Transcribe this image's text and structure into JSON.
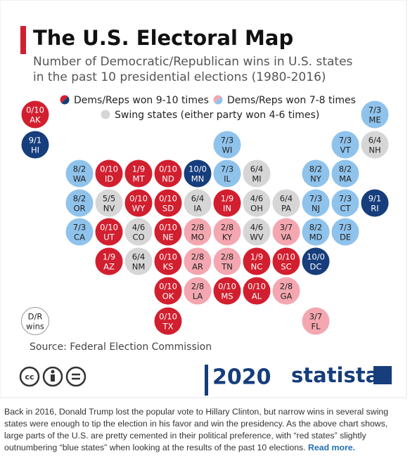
{
  "header": {
    "title": "The U.S. Electoral Map",
    "subtitle": [
      "Number of Democratic/Republican wins in U.S. states",
      "in the past 10 presidential elections (1980-2016)"
    ]
  },
  "legend": [
    {
      "label": "Dems/Reps won 9-10 times",
      "colors": [
        "#d21f2f",
        "#163d7c"
      ]
    },
    {
      "label": "Dems/Reps won 7-8 times",
      "colors": [
        "#f4a7b0",
        "#8fc3ec"
      ]
    },
    {
      "label": "Swing states (either party won 4-6 times)",
      "colors": [
        "#d6d6d6"
      ]
    }
  ],
  "tiles": [
    {
      "score": "0/10",
      "state": "AK",
      "color": "#d21f2f"
    },
    {
      "score": "7/3",
      "state": "ME",
      "color": "#8fc3ec"
    },
    {
      "score": "9/1",
      "state": "HI",
      "color": "#163d7c"
    },
    {
      "score": "7/3",
      "state": "WI",
      "color": "#8fc3ec"
    },
    {
      "score": "7/3",
      "state": "VT",
      "color": "#8fc3ec"
    },
    {
      "score": "6/4",
      "state": "NH",
      "color": "#d6d6d6"
    },
    {
      "score": "8/2",
      "state": "WA",
      "color": "#8fc3ec"
    },
    {
      "score": "0/10",
      "state": "ID",
      "color": "#d21f2f"
    },
    {
      "score": "1/9",
      "state": "MT",
      "color": "#d21f2f"
    },
    {
      "score": "0/10",
      "state": "ND",
      "color": "#d21f2f"
    },
    {
      "score": "10/0",
      "state": "MN",
      "color": "#163d7c"
    },
    {
      "score": "7/3",
      "state": "IL",
      "color": "#8fc3ec"
    },
    {
      "score": "6/4",
      "state": "MI",
      "color": "#d6d6d6"
    },
    {
      "score": "8/2",
      "state": "NY",
      "color": "#8fc3ec"
    },
    {
      "score": "8/2",
      "state": "MA",
      "color": "#8fc3ec"
    },
    {
      "score": "8/2",
      "state": "OR",
      "color": "#8fc3ec"
    },
    {
      "score": "5/5",
      "state": "NV",
      "color": "#d6d6d6"
    },
    {
      "score": "0/10",
      "state": "WY",
      "color": "#d21f2f"
    },
    {
      "score": "0/10",
      "state": "SD",
      "color": "#d21f2f"
    },
    {
      "score": "6/4",
      "state": "IA",
      "color": "#d6d6d6"
    },
    {
      "score": "1/9",
      "state": "IN",
      "color": "#d21f2f"
    },
    {
      "score": "4/6",
      "state": "OH",
      "color": "#d6d6d6"
    },
    {
      "score": "6/4",
      "state": "PA",
      "color": "#d6d6d6"
    },
    {
      "score": "7/3",
      "state": "NJ",
      "color": "#8fc3ec"
    },
    {
      "score": "7/3",
      "state": "CT",
      "color": "#8fc3ec"
    },
    {
      "score": "9/1",
      "state": "RI",
      "color": "#163d7c"
    },
    {
      "score": "7/3",
      "state": "CA",
      "color": "#8fc3ec"
    },
    {
      "score": "0/10",
      "state": "UT",
      "color": "#d21f2f"
    },
    {
      "score": "4/6",
      "state": "CO",
      "color": "#d6d6d6"
    },
    {
      "score": "0/10",
      "state": "NE",
      "color": "#d21f2f"
    },
    {
      "score": "2/8",
      "state": "MO",
      "color": "#f4a7b0"
    },
    {
      "score": "2/8",
      "state": "KY",
      "color": "#f4a7b0"
    },
    {
      "score": "4/6",
      "state": "WV",
      "color": "#d6d6d6"
    },
    {
      "score": "3/7",
      "state": "VA",
      "color": "#f4a7b0"
    },
    {
      "score": "8/2",
      "state": "MD",
      "color": "#8fc3ec"
    },
    {
      "score": "7/3",
      "state": "DE",
      "color": "#8fc3ec"
    },
    {
      "score": "1/9",
      "state": "AZ",
      "color": "#d21f2f"
    },
    {
      "score": "6/4",
      "state": "NM",
      "color": "#d6d6d6"
    },
    {
      "score": "0/10",
      "state": "KS",
      "color": "#d21f2f"
    },
    {
      "score": "2/8",
      "state": "AR",
      "color": "#f4a7b0"
    },
    {
      "score": "2/8",
      "state": "TN",
      "color": "#f4a7b0"
    },
    {
      "score": "1/9",
      "state": "NC",
      "color": "#d21f2f"
    },
    {
      "score": "0/10",
      "state": "SC",
      "color": "#d21f2f"
    },
    {
      "score": "10/0",
      "state": "DC",
      "color": "#163d7c"
    },
    {
      "score": "0/10",
      "state": "OK",
      "color": "#d21f2f"
    },
    {
      "score": "2/8",
      "state": "LA",
      "color": "#f4a7b0"
    },
    {
      "score": "0/10",
      "state": "MS",
      "color": "#d21f2f"
    },
    {
      "score": "0/10",
      "state": "AL",
      "color": "#d21f2f"
    },
    {
      "score": "2/8",
      "state": "GA",
      "color": "#f4a7b0"
    },
    {
      "score": "0/10",
      "state": "TX",
      "color": "#d21f2f"
    },
    {
      "score": "3/7",
      "state": "FL",
      "color": "#f4a7b0"
    }
  ],
  "key": [
    "D/R",
    "wins"
  ],
  "source": "Source: Federal Election Commission",
  "brand": {
    "year": "2020",
    "logo": "statista"
  },
  "caption": {
    "text": "Back in 2016, Donald Trump lost the popular vote to Hillary Clinton, but narrow wins in several swing states were enough to tip the election in his favor and win the presidency. As the above chart shows, large parts of the U.S. are pretty cemented in their political preference, with “red states” slightly outnumbering “blue states” when looking at the results of the past 10 elections.",
    "link": "Read more."
  }
}
